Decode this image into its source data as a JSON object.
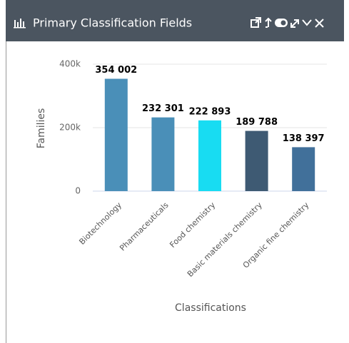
{
  "chart_data": {
    "type": "bar",
    "title": "Primary Classification Fields",
    "categories": [
      "Biotechnology",
      "Pharmaceuticals",
      "Food chemistry",
      "Basic materials chemistry",
      "Organic fine chemistry"
    ],
    "values": [
      354002,
      232301,
      222893,
      189788,
      138397
    ],
    "value_labels": [
      "354 002",
      "232 301",
      "222 893",
      "189 788",
      "138 397"
    ],
    "colors": [
      "#4a8fb8",
      "#4a8fb8",
      "#18dcf2",
      "#3e5a73",
      "#41709a"
    ],
    "ylabel": "Families",
    "xlabel": "Classifications",
    "ylim": [
      0,
      400000
    ],
    "yticks": [
      0,
      {
        "value": 200000,
        "label": "200k"
      },
      {
        "value": 400000,
        "label": "400k"
      }
    ],
    "grid": true
  }
}
